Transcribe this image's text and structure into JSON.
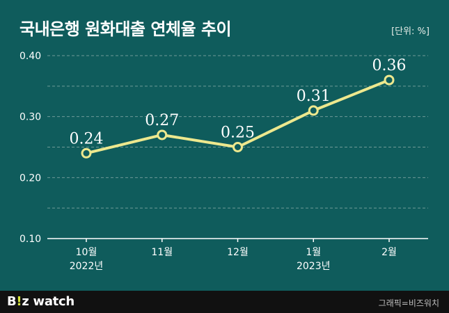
{
  "title": "국내은행 원화대출 연체율 추이",
  "unit_label": "[단위: %]",
  "chart_data": {
    "type": "line",
    "title": "국내은행 원화대출 연체율 추이",
    "ylabel": "",
    "xlabel": "",
    "categories": [
      "10월",
      "11월",
      "12월",
      "1월",
      "2월"
    ],
    "category_sublabels": [
      "2022년",
      "",
      "",
      "2023년",
      ""
    ],
    "series": [
      {
        "values": [
          0.24,
          0.27,
          0.25,
          0.31,
          0.36
        ],
        "labels": [
          "0.24",
          "0.27",
          "0.25",
          "0.31",
          "0.36"
        ]
      }
    ],
    "yticks": [
      "0.10",
      "0.20",
      "0.30",
      "0.40"
    ],
    "ylim": [
      0.1,
      0.4
    ],
    "grid": true,
    "colors": {
      "background": "#0f5c5c",
      "line": "#ede88e",
      "grid": "#6f9a97",
      "axis": "#ffffff",
      "text": "#ffffff"
    }
  },
  "footer": {
    "brand_part1": "B",
    "brand_part2": "!",
    "brand_part3": "z watch",
    "credit": "그래픽=비즈워치"
  }
}
